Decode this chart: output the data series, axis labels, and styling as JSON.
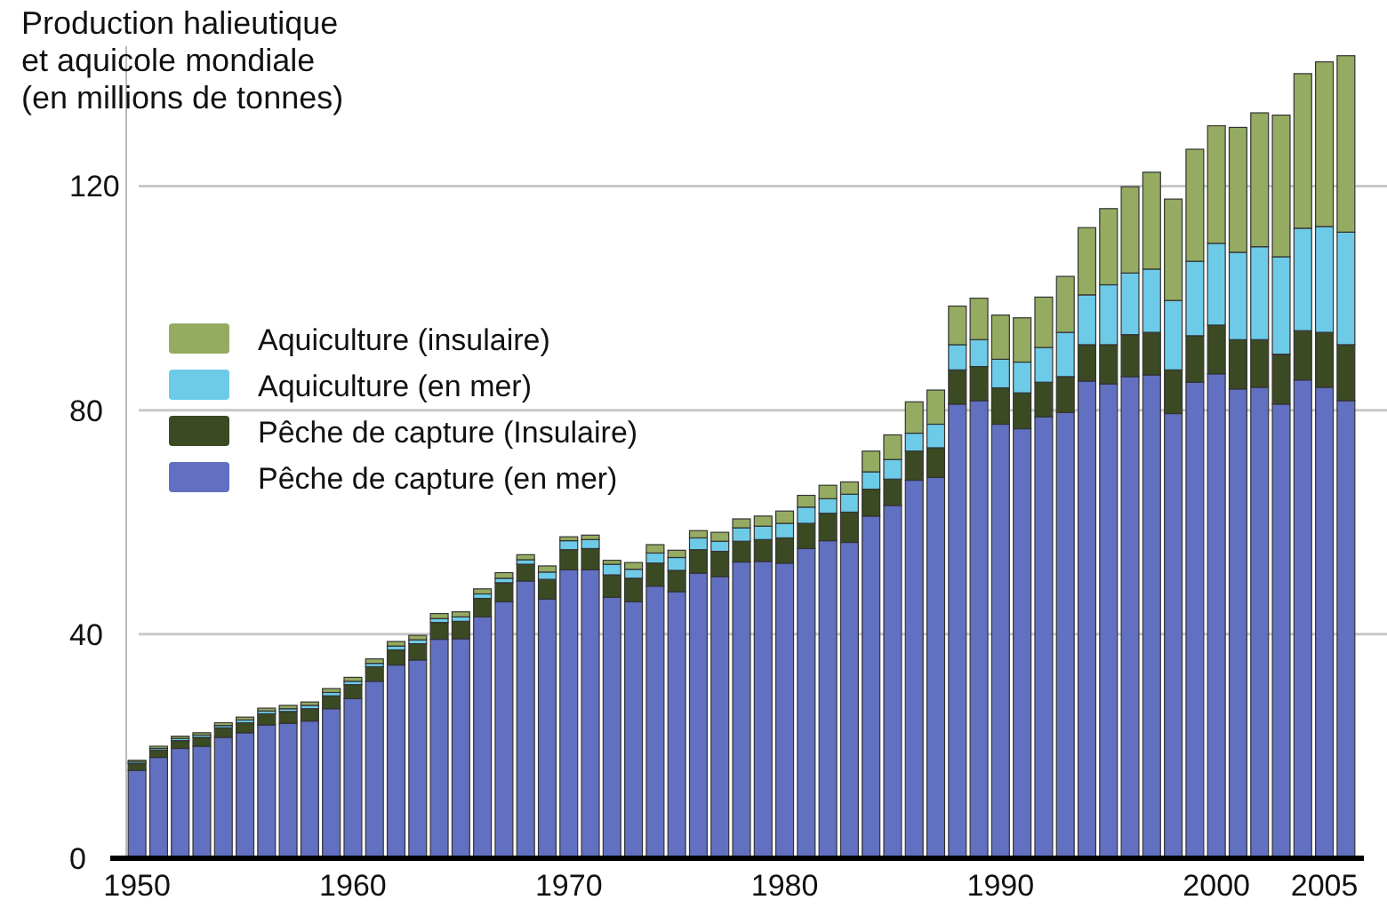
{
  "chart_data": {
    "type": "bar",
    "stacked": true,
    "title": "Production halieutique\net aquicole mondiale\n(en millions de tonnes)",
    "x": [
      1950,
      1951,
      1952,
      1953,
      1954,
      1955,
      1956,
      1957,
      1958,
      1959,
      1960,
      1961,
      1962,
      1963,
      1964,
      1965,
      1966,
      1967,
      1968,
      1969,
      1970,
      1971,
      1972,
      1973,
      1974,
      1975,
      1976,
      1977,
      1978,
      1979,
      1980,
      1981,
      1982,
      1983,
      1984,
      1985,
      1986,
      1987,
      1988,
      1989,
      1990,
      1991,
      1992,
      1993,
      1994,
      1995,
      1996,
      1997,
      1998,
      1999,
      2000,
      2001,
      2002,
      2003,
      2004,
      2005,
      2006
    ],
    "xlim": [
      1949.5,
      2006.5
    ],
    "xticks": [
      1950,
      1960,
      1970,
      1980,
      1990,
      2000,
      2005
    ],
    "ylim": [
      0,
      145
    ],
    "yticks": [
      0,
      40,
      80,
      120
    ],
    "grid": "y",
    "legend": "left",
    "series": [
      {
        "name": "Pêche de capture (en mer)",
        "color": "#6170c0",
        "values": [
          15.7,
          18,
          19.6,
          20,
          21.6,
          22.4,
          23.8,
          24.1,
          24.5,
          26.7,
          28.5,
          31.6,
          34.5,
          35.4,
          39.1,
          39.2,
          43.1,
          45.8,
          49.5,
          46.3,
          51.5,
          51.5,
          46.6,
          45.8,
          48.6,
          47.6,
          50.9,
          50.3,
          52.9,
          53,
          52.7,
          55.3,
          56.7,
          56.4,
          61.1,
          63,
          67.5,
          68,
          81.1,
          81.7,
          77.5,
          76.7,
          78.8,
          79.6,
          85.2,
          84.7,
          86,
          86.3,
          79.4,
          85,
          86.5,
          83.8,
          84.1,
          81.1,
          85.4,
          84.1,
          81.7
        ]
      },
      {
        "name": "Pêche de capture (Insulaire)",
        "color": "#3b4a22",
        "values": [
          1.2,
          1.3,
          1.4,
          1.6,
          1.7,
          1.8,
          2,
          2.1,
          2.2,
          2.3,
          2.5,
          2.6,
          2.7,
          2.9,
          3,
          3.1,
          3.3,
          3.4,
          3,
          3.5,
          3.6,
          3.8,
          4,
          4.2,
          4.1,
          3.8,
          4.2,
          4.5,
          3.7,
          3.9,
          4.5,
          4.5,
          4.9,
          5.4,
          4.8,
          4.7,
          5.2,
          5.3,
          6.1,
          6.1,
          6.5,
          6.4,
          6.2,
          6.4,
          6.5,
          7,
          7.5,
          7.6,
          7.8,
          8.3,
          8.7,
          8.8,
          8.5,
          8.9,
          8.8,
          9.8,
          10
        ]
      },
      {
        "name": "Aquiculture (en mer)",
        "color": "#6dcbe8",
        "values": [
          0.3,
          0.3,
          0.4,
          0.4,
          0.4,
          0.5,
          0.5,
          0.5,
          0.6,
          0.6,
          0.6,
          0.6,
          0.7,
          0.7,
          0.7,
          0.8,
          0.8,
          0.8,
          0.8,
          1.3,
          1.6,
          1.6,
          1.9,
          1.6,
          1.8,
          2.3,
          2.1,
          1.8,
          2.4,
          2.4,
          2.6,
          2.9,
          2.6,
          3.2,
          3.1,
          3.5,
          3.2,
          4.2,
          4.5,
          4.8,
          5.1,
          5.5,
          6.2,
          7.9,
          8.9,
          10.7,
          11,
          11.3,
          12.4,
          13.3,
          14.6,
          15.6,
          16.6,
          17.4,
          18.3,
          18.9,
          20.1
        ]
      },
      {
        "name": "Aquiculture (insulaire)",
        "color": "#94ab61",
        "values": [
          0.3,
          0.4,
          0.4,
          0.4,
          0.5,
          0.5,
          0.5,
          0.6,
          0.6,
          0.7,
          0.7,
          0.8,
          0.8,
          0.8,
          0.9,
          0.9,
          0.9,
          1,
          0.9,
          1.1,
          0.7,
          0.8,
          0.7,
          1.2,
          1.5,
          1.3,
          1.3,
          1.6,
          1.6,
          1.8,
          2.2,
          2.1,
          2.4,
          2.2,
          3.7,
          4.4,
          5.6,
          6.1,
          6.9,
          7.4,
          7.9,
          7.9,
          9,
          10,
          12,
          13.6,
          15.4,
          17.3,
          18.1,
          20,
          21,
          22.3,
          23.9,
          25.3,
          27.6,
          29.4,
          31.5
        ]
      }
    ]
  }
}
